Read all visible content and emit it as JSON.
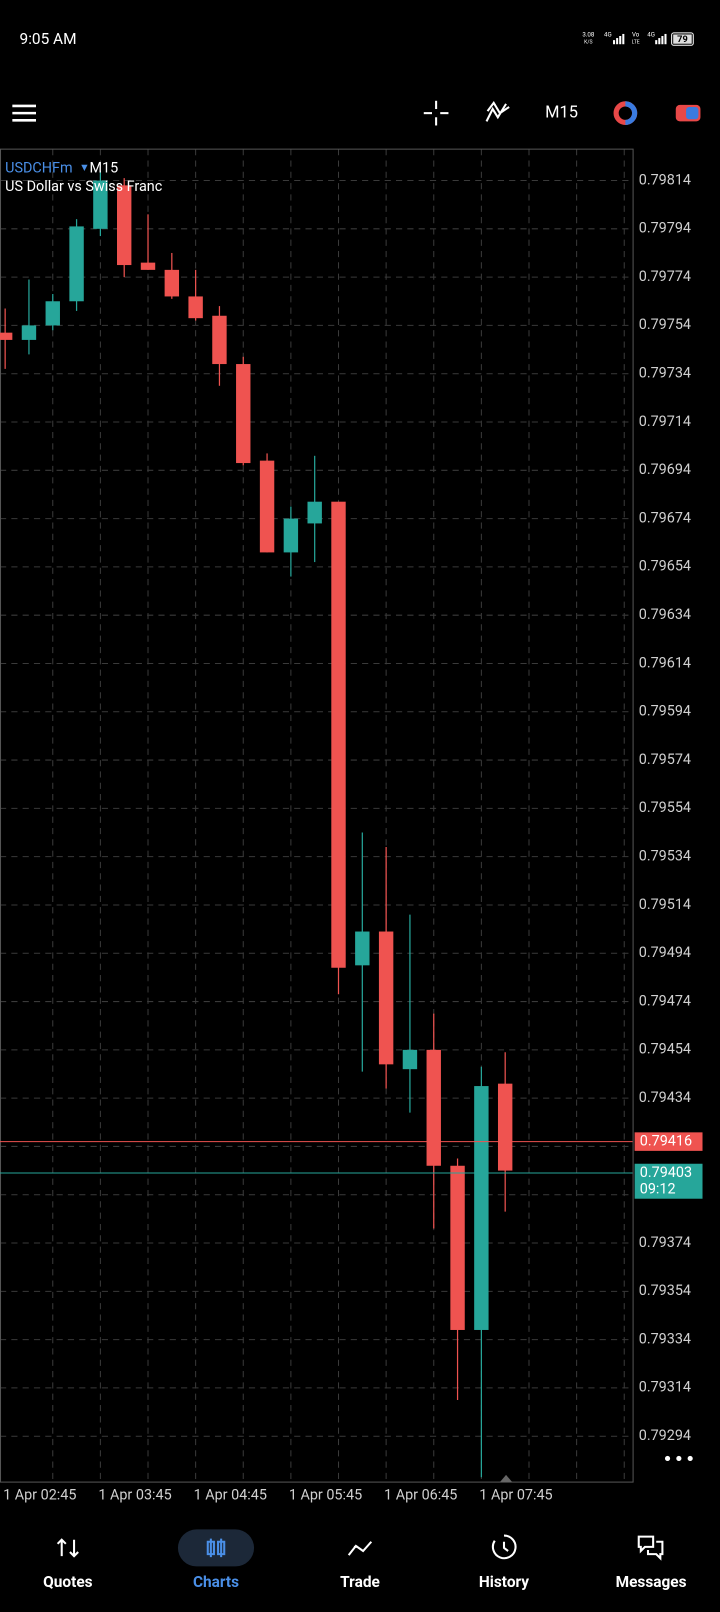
{
  "status_bar": {
    "time": "9:05 AM",
    "speed": "3.08",
    "speed_unit": "K/S",
    "net1": "4G",
    "volte1": "Vo",
    "volte2": "LTE",
    "net2": "4G",
    "battery": "79"
  },
  "toolbar": {
    "timeframe": "M15"
  },
  "chart_data": {
    "type": "candlestick",
    "symbol": "USDCHFm",
    "timeframe": "M15",
    "subtitle": "US Dollar vs Swiss Franc",
    "categories": [
      "1 Apr 02:45",
      null,
      null,
      null,
      "1 Apr 03:45",
      null,
      null,
      null,
      "1 Apr 04:45",
      null,
      null,
      null,
      "1 Apr 05:45",
      null,
      null,
      null,
      "1 Apr 06:45",
      null,
      null,
      null,
      "1 Apr 07:45",
      null
    ],
    "open": [
      0.79751,
      0.79748,
      0.79754,
      0.79764,
      0.79794,
      0.79812,
      0.7978,
      0.79777,
      0.79766,
      0.79758,
      0.79738,
      0.79698,
      0.7966,
      0.79672,
      0.79681,
      0.79489,
      0.79503,
      0.79446,
      0.79454,
      0.79406,
      0.79338,
      0.7944
    ],
    "high": [
      0.79761,
      0.79773,
      0.79767,
      0.79798,
      0.79818,
      0.79815,
      0.798,
      0.79784,
      0.79777,
      0.79762,
      0.79741,
      0.79701,
      0.79679,
      0.797,
      0.79681,
      0.79544,
      0.79538,
      0.7951,
      0.79469,
      0.79409,
      0.79447,
      0.79453
    ],
    "low": [
      0.79736,
      0.79742,
      0.79752,
      0.7976,
      0.79791,
      0.79774,
      0.79777,
      0.79765,
      0.79756,
      0.79729,
      0.79696,
      0.7966,
      0.7965,
      0.79656,
      0.79477,
      0.79445,
      0.79438,
      0.79428,
      0.7938,
      0.79309,
      0.79277,
      0.79387
    ],
    "close": [
      0.79748,
      0.79754,
      0.79764,
      0.79795,
      0.79814,
      0.79779,
      0.79777,
      0.79766,
      0.79757,
      0.79738,
      0.79697,
      0.7966,
      0.79674,
      0.79681,
      0.79488,
      0.79503,
      0.79448,
      0.79454,
      0.79406,
      0.79338,
      0.79439,
      0.79404
    ],
    "up_color": "#26a69a",
    "down_color": "#ef5350",
    "ylim": [
      0.79275,
      0.79827
    ],
    "yticks": [
      0.79814,
      0.79794,
      0.79774,
      0.79754,
      0.79734,
      0.79714,
      0.79694,
      0.79674,
      0.79654,
      0.79634,
      0.79614,
      0.79594,
      0.79574,
      0.79554,
      0.79534,
      0.79514,
      0.79494,
      0.79474,
      0.79454,
      0.79434,
      0.79414,
      0.79394,
      0.79374,
      0.79354,
      0.79334,
      0.79314,
      0.79294
    ],
    "grid": true,
    "price_lines": [
      {
        "value": 0.79416,
        "color": "#ef5350"
      },
      {
        "value": 0.79403,
        "color": "#26a69a",
        "countdown": "09:12"
      }
    ]
  },
  "nav": {
    "items": [
      "Quotes",
      "Charts",
      "Trade",
      "History",
      "Messages"
    ],
    "active": 1
  }
}
